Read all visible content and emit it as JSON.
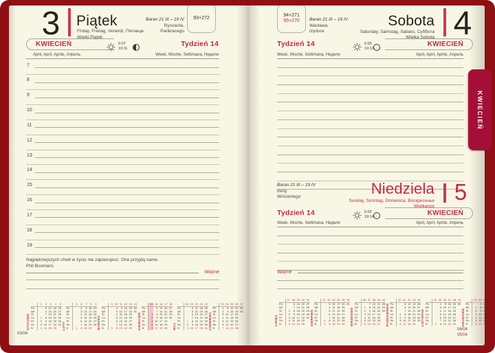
{
  "cover": {
    "tab_label": "KWIECIEŃ"
  },
  "colors": {
    "cover": "#8e1014",
    "accent": "#c4294a",
    "tab": "#a50f37",
    "paper": "#f8f6e4",
    "week_highlight": "#f3c3cc"
  },
  "left_page": {
    "day_number": "3",
    "day_name": "Piątek",
    "day_langs": "Friday, Freitag, Venerdì, Пятница",
    "day_holiday": "Wielki Piątek",
    "zodiac": "Baran 21 III – 19 IV",
    "nameday1": "Ryszarda,",
    "nameday2": "Pankracego",
    "day_count": "93+272",
    "month_name": "KWIECIEŃ",
    "month_langs": "April, April, Aprile, Апрель",
    "week_name": "Tydzień 14",
    "week_langs": "Week, Woche, Settimana, Неделя",
    "sunrise": "6:07",
    "sunset": "19:11",
    "hours": [
      "7",
      "8",
      "9",
      "10",
      "11",
      "12",
      "13",
      "14",
      "15",
      "16",
      "17",
      "18",
      "19"
    ],
    "quote": "Najpiękniejszych chwil w życiu nie zaplanujesz. One przyjdą same.",
    "quote_author": "Phil Bosmans",
    "important": "Ważne",
    "footer": "03/04"
  },
  "right_page": {
    "saturday": {
      "day_number": "4",
      "day_name": "Sobota",
      "day_langs": "Saturday, Samstag, Sabato, Суббота",
      "day_holiday": "Wielka Sobota",
      "zodiac": "Baran 21 III – 19 IV",
      "nameday1": "Wacława,",
      "nameday2": "Izydora",
      "day_count_black": "94+271",
      "day_count_red": "95+270",
      "week_name": "Tydzień 14",
      "week_langs": "Week, Woche, Settimana, Неделя",
      "month_name": "KWIECIEŃ",
      "month_langs": "April, April, Aprile, Апрель",
      "sunrise": "6:05",
      "sunset": "19:13"
    },
    "sunday": {
      "day_number": "5",
      "day_name": "Niedziela",
      "day_langs": "Sunday, Sonntag, Domenica, Воскресенье",
      "day_holiday": "Wielkanoc",
      "zodiac": "Baran 21 III – 19 IV",
      "nameday1": "Ireny",
      "nameday2": "Wincentego",
      "week_name": "Tydzień 14",
      "week_langs": "Week, Woche, Settimana, Неделя",
      "month_name": "KWIECIEŃ",
      "month_langs": "April, April, Aprile, Апрель",
      "sunrise": "6:02",
      "sunset": "19:14"
    },
    "important": "Ważne",
    "footer_black": "04/04",
    "footer_red": "05/04"
  },
  "mini_calendars": {
    "day_abbrevs": [
      "Pn",
      "Wt",
      "Śr",
      "Cz",
      "Pt",
      "So",
      "N"
    ],
    "left": [
      {
        "name": "STYCZEŃ",
        "weeks": [
          "1",
          "2",
          "3",
          "4",
          "5"
        ],
        "red": [
          "1",
          "6"
        ],
        "rows": [
          [
            "",
            "5",
            "12",
            "19",
            "26"
          ],
          [
            "",
            "6",
            "13",
            "20",
            "27"
          ],
          [
            "",
            "7",
            "14",
            "21",
            "28"
          ],
          [
            "1",
            "8",
            "15",
            "22",
            "29"
          ],
          [
            "2",
            "9",
            "16",
            "23",
            "30"
          ],
          [
            "3",
            "10",
            "17",
            "24",
            "31"
          ],
          [
            "4",
            "11",
            "18",
            "25",
            ""
          ]
        ]
      },
      {
        "name": "LUTY",
        "weeks": [
          "5",
          "6",
          "7",
          "8",
          "9"
        ],
        "red": [],
        "rows": [
          [
            "",
            "2",
            "9",
            "16",
            "23"
          ],
          [
            "",
            "3",
            "10",
            "17",
            "24"
          ],
          [
            "",
            "4",
            "11",
            "18",
            "25"
          ],
          [
            "",
            "5",
            "12",
            "19",
            "26"
          ],
          [
            "",
            "6",
            "13",
            "20",
            "27"
          ],
          [
            "",
            "7",
            "14",
            "21",
            "28"
          ],
          [
            "1",
            "8",
            "15",
            "22",
            ""
          ]
        ]
      },
      {
        "name": "MARZEC",
        "weeks": [
          "9",
          "10",
          "11",
          "12",
          "13",
          "14"
        ],
        "red": [],
        "rows": [
          [
            "",
            "2",
            "9",
            "16",
            "23",
            "30"
          ],
          [
            "",
            "3",
            "10",
            "17",
            "24",
            "31"
          ],
          [
            "",
            "4",
            "11",
            "18",
            "25",
            ""
          ],
          [
            "",
            "5",
            "12",
            "19",
            "26",
            ""
          ],
          [
            "",
            "6",
            "13",
            "20",
            "27",
            ""
          ],
          [
            "",
            "7",
            "14",
            "21",
            "28",
            ""
          ],
          [
            "1",
            "8",
            "15",
            "22",
            "29",
            ""
          ]
        ]
      },
      {
        "name": "KWIECIEŃ",
        "weeks": [
          "14",
          "15",
          "16",
          "17",
          "18"
        ],
        "red": [
          "6"
        ],
        "hl": 0,
        "rows": [
          [
            "",
            "6",
            "13",
            "20",
            "27"
          ],
          [
            "",
            "7",
            "14",
            "21",
            "28"
          ],
          [
            "1",
            "8",
            "15",
            "22",
            "29"
          ],
          [
            "2",
            "9",
            "16",
            "23",
            "30"
          ],
          [
            "3",
            "10",
            "17",
            "24",
            ""
          ],
          [
            "4",
            "11",
            "18",
            "25",
            ""
          ],
          [
            "5",
            "12",
            "19",
            "26",
            ""
          ]
        ]
      },
      {
        "name": "MAJ",
        "weeks": [
          "18",
          "19",
          "20",
          "21",
          "22"
        ],
        "red": [
          "1",
          "3"
        ],
        "rows": [
          [
            "",
            "4",
            "11",
            "18",
            "25"
          ],
          [
            "",
            "5",
            "12",
            "19",
            "26"
          ],
          [
            "",
            "6",
            "13",
            "20",
            "27"
          ],
          [
            "",
            "7",
            "14",
            "21",
            "28"
          ],
          [
            "1",
            "8",
            "15",
            "22",
            "29"
          ],
          [
            "2",
            "9",
            "16",
            "23",
            "30"
          ],
          [
            "3",
            "10",
            "17",
            "24",
            "31"
          ]
        ]
      },
      {
        "name": "CZERWIEC",
        "weeks": [
          "23",
          "24",
          "25",
          "26",
          "27"
        ],
        "red": [
          "4"
        ],
        "rows": [
          [
            "1",
            "8",
            "15",
            "22",
            "29"
          ],
          [
            "2",
            "9",
            "16",
            "23",
            "30"
          ],
          [
            "3",
            "10",
            "17",
            "24",
            ""
          ],
          [
            "4",
            "11",
            "18",
            "25",
            ""
          ],
          [
            "5",
            "12",
            "19",
            "26",
            ""
          ],
          [
            "6",
            "13",
            "20",
            "27",
            ""
          ],
          [
            "7",
            "14",
            "21",
            "28",
            ""
          ]
        ]
      }
    ],
    "right": [
      {
        "name": "LIPIEC",
        "weeks": [
          "27",
          "28",
          "29",
          "30",
          "31"
        ],
        "red": [],
        "rows": [
          [
            "",
            "6",
            "13",
            "20",
            "27"
          ],
          [
            "",
            "7",
            "14",
            "21",
            "28"
          ],
          [
            "1",
            "8",
            "15",
            "22",
            "29"
          ],
          [
            "2",
            "9",
            "16",
            "23",
            "30"
          ],
          [
            "3",
            "10",
            "17",
            "24",
            "31"
          ],
          [
            "4",
            "11",
            "18",
            "25",
            ""
          ],
          [
            "5",
            "12",
            "19",
            "26",
            ""
          ]
        ]
      },
      {
        "name": "SIERPIEŃ",
        "weeks": [
          "31",
          "32",
          "33",
          "34",
          "35",
          "36"
        ],
        "red": [
          "15"
        ],
        "rows": [
          [
            "",
            "3",
            "10",
            "17",
            "24",
            "31"
          ],
          [
            "",
            "4",
            "11",
            "18",
            "25",
            ""
          ],
          [
            "",
            "5",
            "12",
            "19",
            "26",
            ""
          ],
          [
            "",
            "6",
            "13",
            "20",
            "27",
            ""
          ],
          [
            "",
            "7",
            "14",
            "21",
            "28",
            ""
          ],
          [
            "1",
            "8",
            "15",
            "22",
            "29",
            ""
          ],
          [
            "2",
            "9",
            "16",
            "23",
            "30",
            ""
          ]
        ]
      },
      {
        "name": "WRZESIEŃ",
        "weeks": [
          "36",
          "37",
          "38",
          "39",
          "40"
        ],
        "red": [],
        "rows": [
          [
            "",
            "7",
            "14",
            "21",
            "28"
          ],
          [
            "1",
            "8",
            "15",
            "22",
            "29"
          ],
          [
            "2",
            "9",
            "16",
            "23",
            "30"
          ],
          [
            "3",
            "10",
            "17",
            "24",
            ""
          ],
          [
            "4",
            "11",
            "18",
            "25",
            ""
          ],
          [
            "5",
            "12",
            "19",
            "26",
            ""
          ],
          [
            "6",
            "13",
            "20",
            "27",
            ""
          ]
        ]
      },
      {
        "name": "PAŹDZIERNIK",
        "weeks": [
          "40",
          "41",
          "42",
          "43",
          "44"
        ],
        "red": [],
        "rows": [
          [
            "",
            "5",
            "12",
            "19",
            "26"
          ],
          [
            "",
            "6",
            "13",
            "20",
            "27"
          ],
          [
            "",
            "7",
            "14",
            "21",
            "28"
          ],
          [
            "1",
            "8",
            "15",
            "22",
            "29"
          ],
          [
            "2",
            "9",
            "16",
            "23",
            "30"
          ],
          [
            "3",
            "10",
            "17",
            "24",
            "31"
          ],
          [
            "4",
            "11",
            "18",
            "25",
            ""
          ]
        ]
      },
      {
        "name": "LISTOPAD",
        "weeks": [
          "44",
          "45",
          "46",
          "47",
          "48",
          "49"
        ],
        "red": [
          "11"
        ],
        "rows": [
          [
            "",
            "2",
            "9",
            "16",
            "23",
            "30"
          ],
          [
            "",
            "3",
            "10",
            "17",
            "24",
            ""
          ],
          [
            "",
            "4",
            "11",
            "18",
            "25",
            ""
          ],
          [
            "",
            "5",
            "12",
            "19",
            "26",
            ""
          ],
          [
            "",
            "6",
            "13",
            "20",
            "27",
            ""
          ],
          [
            "",
            "7",
            "14",
            "21",
            "28",
            ""
          ],
          [
            "1",
            "8",
            "15",
            "22",
            "29",
            ""
          ]
        ]
      },
      {
        "name": "GRUDZIEŃ",
        "weeks": [
          "49",
          "50",
          "51",
          "52",
          "53"
        ],
        "red": [
          "25",
          "26"
        ],
        "rows": [
          [
            "",
            "7",
            "14",
            "21",
            "28"
          ],
          [
            "1",
            "8",
            "15",
            "22",
            "29"
          ],
          [
            "2",
            "9",
            "16",
            "23",
            "30"
          ],
          [
            "3",
            "10",
            "17",
            "24",
            "31"
          ],
          [
            "4",
            "11",
            "18",
            "25",
            ""
          ],
          [
            "5",
            "12",
            "19",
            "26",
            ""
          ],
          [
            "6",
            "13",
            "20",
            "27",
            ""
          ]
        ]
      }
    ]
  }
}
